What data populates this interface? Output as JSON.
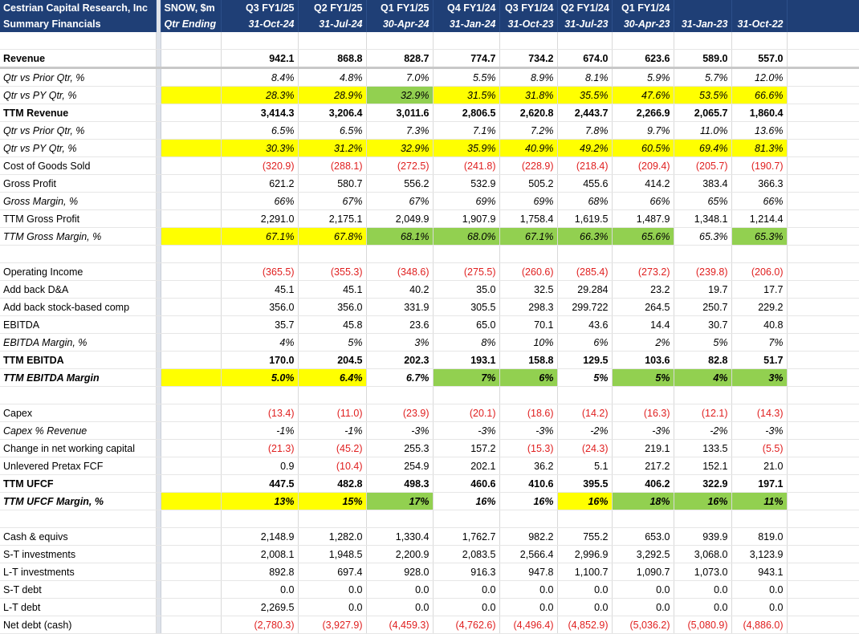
{
  "header": {
    "company": "Cestrian Capital Research, Inc",
    "subtitle": "Summary Financials",
    "ticker": "SNOW, $m",
    "period_label": "Qtr Ending",
    "quarters": [
      "Q3 FY1/25",
      "Q2 FY1/25",
      "Q1 FY1/25",
      "Q4 FY1/24",
      "Q3 FY1/24",
      "Q2 FY1/24",
      "Q1 FY1/24",
      "",
      ""
    ],
    "dates": [
      "31-Oct-24",
      "31-Jul-24",
      "30-Apr-24",
      "31-Jan-24",
      "31-Oct-23",
      "31-Jul-23",
      "30-Apr-23",
      "31-Jan-23",
      "31-Oct-22"
    ]
  },
  "colors": {
    "header_bg": "#1f3f76",
    "highlight_yellow": "#ffff00",
    "highlight_green": "#92d050",
    "negative": "#e02020"
  },
  "rows": [
    {
      "label": "",
      "values": [
        "",
        "",
        "",
        "",
        "",
        "",
        "",
        "",
        ""
      ]
    },
    {
      "label": "Revenue",
      "bold": true,
      "thick": true,
      "values": [
        "942.1",
        "868.8",
        "828.7",
        "774.7",
        "734.2",
        "674.0",
        "623.6",
        "589.0",
        "557.0"
      ]
    },
    {
      "label": "Qtr vs Prior Qtr, %",
      "italic": true,
      "values": [
        "8.4%",
        "4.8%",
        "7.0%",
        "5.5%",
        "8.9%",
        "8.1%",
        "5.9%",
        "5.7%",
        "12.0%"
      ]
    },
    {
      "label": "Qtr vs PY Qtr, %",
      "italic": true,
      "labelbg": "y",
      "values": [
        "28.3%",
        "28.9%",
        "32.9%",
        "31.5%",
        "31.8%",
        "35.5%",
        "47.6%",
        "53.5%",
        "66.6%"
      ],
      "bg": [
        "y",
        "y",
        "g",
        "y",
        "y",
        "y",
        "y",
        "y",
        "y"
      ]
    },
    {
      "label": "TTM Revenue",
      "bold": true,
      "values": [
        "3,414.3",
        "3,206.4",
        "3,011.6",
        "2,806.5",
        "2,620.8",
        "2,443.7",
        "2,266.9",
        "2,065.7",
        "1,860.4"
      ]
    },
    {
      "label": "Qtr vs Prior Qtr, %",
      "italic": true,
      "values": [
        "6.5%",
        "6.5%",
        "7.3%",
        "7.1%",
        "7.2%",
        "7.8%",
        "9.7%",
        "11.0%",
        "13.6%"
      ]
    },
    {
      "label": "Qtr vs PY Qtr, %",
      "italic": true,
      "labelbg": "y",
      "values": [
        "30.3%",
        "31.2%",
        "32.9%",
        "35.9%",
        "40.9%",
        "49.2%",
        "60.5%",
        "69.4%",
        "81.3%"
      ],
      "bg": [
        "y",
        "y",
        "y",
        "y",
        "y",
        "y",
        "y",
        "y",
        "y"
      ]
    },
    {
      "label": "Cost of Goods Sold",
      "red": true,
      "values": [
        "(320.9)",
        "(288.1)",
        "(272.5)",
        "(241.8)",
        "(228.9)",
        "(218.4)",
        "(209.4)",
        "(205.7)",
        "(190.7)"
      ]
    },
    {
      "label": "Gross Profit",
      "values": [
        "621.2",
        "580.7",
        "556.2",
        "532.9",
        "505.2",
        "455.6",
        "414.2",
        "383.4",
        "366.3"
      ]
    },
    {
      "label": "Gross Margin, %",
      "italic": true,
      "values": [
        "66%",
        "67%",
        "67%",
        "69%",
        "69%",
        "68%",
        "66%",
        "65%",
        "66%"
      ]
    },
    {
      "label": "TTM Gross Profit",
      "values": [
        "2,291.0",
        "2,175.1",
        "2,049.9",
        "1,907.9",
        "1,758.4",
        "1,619.5",
        "1,487.9",
        "1,348.1",
        "1,214.4"
      ]
    },
    {
      "label": "TTM Gross Margin, %",
      "italic": true,
      "labelbg": "y",
      "values": [
        "67.1%",
        "67.8%",
        "68.1%",
        "68.0%",
        "67.1%",
        "66.3%",
        "65.6%",
        "65.3%",
        "65.3%"
      ],
      "bg": [
        "y",
        "y",
        "g",
        "g",
        "g",
        "g",
        "g",
        "",
        "g"
      ]
    },
    {
      "label": "",
      "values": [
        "",
        "",
        "",
        "",
        "",
        "",
        "",
        "",
        ""
      ]
    },
    {
      "label": "Operating Income",
      "red": true,
      "values": [
        "(365.5)",
        "(355.3)",
        "(348.6)",
        "(275.5)",
        "(260.6)",
        "(285.4)",
        "(273.2)",
        "(239.8)",
        "(206.0)"
      ]
    },
    {
      "label": "Add back D&A",
      "values": [
        "45.1",
        "45.1",
        "40.2",
        "35.0",
        "32.5",
        "29.284",
        "23.2",
        "19.7",
        "17.7"
      ]
    },
    {
      "label": "Add back stock-based comp",
      "values": [
        "356.0",
        "356.0",
        "331.9",
        "305.5",
        "298.3",
        "299.722",
        "264.5",
        "250.7",
        "229.2"
      ]
    },
    {
      "label": "EBITDA",
      "values": [
        "35.7",
        "45.8",
        "23.6",
        "65.0",
        "70.1",
        "43.6",
        "14.4",
        "30.7",
        "40.8"
      ]
    },
    {
      "label": "EBITDA Margin, %",
      "italic": true,
      "values": [
        "4%",
        "5%",
        "3%",
        "8%",
        "10%",
        "6%",
        "2%",
        "5%",
        "7%"
      ]
    },
    {
      "label": "TTM EBITDA",
      "bold": true,
      "values": [
        "170.0",
        "204.5",
        "202.3",
        "193.1",
        "158.8",
        "129.5",
        "103.6",
        "82.8",
        "51.7"
      ]
    },
    {
      "label": "TTM EBITDA Margin",
      "bold": true,
      "italic": true,
      "labelbg": "y",
      "values": [
        "5.0%",
        "6.4%",
        "6.7%",
        "7%",
        "6%",
        "5%",
        "5%",
        "4%",
        "3%"
      ],
      "bg": [
        "y",
        "y",
        "",
        "g",
        "g",
        "",
        "g",
        "g",
        "g"
      ]
    },
    {
      "label": "",
      "values": [
        "",
        "",
        "",
        "",
        "",
        "",
        "",
        "",
        ""
      ]
    },
    {
      "label": "Capex",
      "red": true,
      "values": [
        "(13.4)",
        "(11.0)",
        "(23.9)",
        "(20.1)",
        "(18.6)",
        "(14.2)",
        "(16.3)",
        "(12.1)",
        "(14.3)"
      ]
    },
    {
      "label": "Capex % Revenue",
      "italic": true,
      "values": [
        "-1%",
        "-1%",
        "-3%",
        "-3%",
        "-3%",
        "-2%",
        "-3%",
        "-2%",
        "-3%"
      ]
    },
    {
      "label": "Change in net working capital",
      "values": [
        "(21.3)",
        "(45.2)",
        "255.3",
        "157.2",
        "(15.3)",
        "(24.3)",
        "219.1",
        "133.5",
        "(5.5)"
      ]
    },
    {
      "label": "Unlevered Pretax FCF",
      "values": [
        "0.9",
        "(10.4)",
        "254.9",
        "202.1",
        "36.2",
        "5.1",
        "217.2",
        "152.1",
        "21.0"
      ]
    },
    {
      "label": "TTM UFCF",
      "bold": true,
      "values": [
        "447.5",
        "482.8",
        "498.3",
        "460.6",
        "410.6",
        "395.5",
        "406.2",
        "322.9",
        "197.1"
      ]
    },
    {
      "label": "TTM UFCF Margin, %",
      "bold": true,
      "italic": true,
      "labelbg": "y",
      "values": [
        "13%",
        "15%",
        "17%",
        "16%",
        "16%",
        "16%",
        "18%",
        "16%",
        "11%"
      ],
      "bg": [
        "y",
        "y",
        "g",
        "",
        "",
        "y",
        "g",
        "g",
        "g"
      ]
    },
    {
      "label": "",
      "values": [
        "",
        "",
        "",
        "",
        "",
        "",
        "",
        "",
        ""
      ]
    },
    {
      "label": "Cash & equivs",
      "values": [
        "2,148.9",
        "1,282.0",
        "1,330.4",
        "1,762.7",
        "982.2",
        "755.2",
        "653.0",
        "939.9",
        "819.0"
      ]
    },
    {
      "label": "S-T investments",
      "values": [
        "2,008.1",
        "1,948.5",
        "2,200.9",
        "2,083.5",
        "2,566.4",
        "2,996.9",
        "3,292.5",
        "3,068.0",
        "3,123.9"
      ]
    },
    {
      "label": "L-T investments",
      "values": [
        "892.8",
        "697.4",
        "928.0",
        "916.3",
        "947.8",
        "1,100.7",
        "1,090.7",
        "1,073.0",
        "943.1"
      ]
    },
    {
      "label": "S-T debt",
      "values": [
        "0.0",
        "0.0",
        "0.0",
        "0.0",
        "0.0",
        "0.0",
        "0.0",
        "0.0",
        "0.0"
      ]
    },
    {
      "label": "L-T debt",
      "values": [
        "2,269.5",
        "0.0",
        "0.0",
        "0.0",
        "0.0",
        "0.0",
        "0.0",
        "0.0",
        "0.0"
      ]
    },
    {
      "label": "Net debt (cash)",
      "red": true,
      "values": [
        "(2,780.3)",
        "(3,927.9)",
        "(4,459.3)",
        "(4,762.6)",
        "(4,496.4)",
        "(4,852.9)",
        "(5,036.2)",
        "(5,080.9)",
        "(4,886.0)"
      ]
    }
  ]
}
